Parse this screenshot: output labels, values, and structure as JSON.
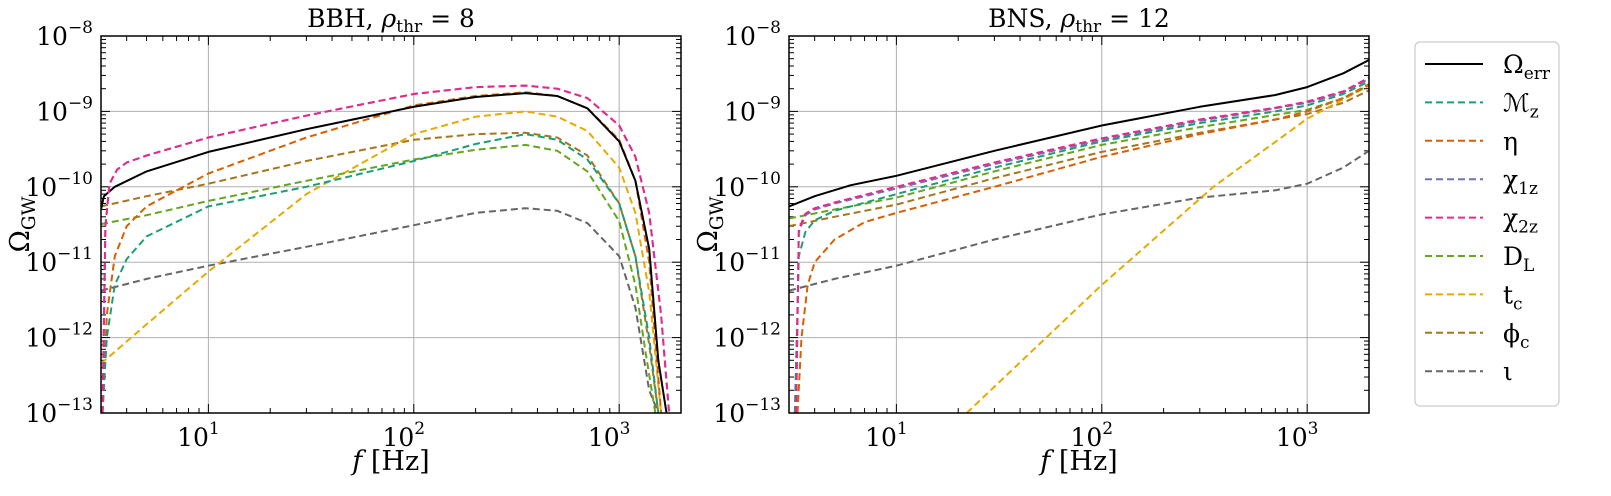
{
  "figure": {
    "ylabel_main": "Ω",
    "ylabel_sub": "GW",
    "xlabel_var": "f",
    "xlabel_unit": "[Hz]"
  },
  "colors": {
    "Omega_err": "#000000",
    "Mz": "#1b9e77",
    "eta": "#d95f02",
    "chi1z": "#7570b3",
    "chi2z": "#e7298a",
    "DL": "#66a61e",
    "tc": "#e6ab02",
    "phic": "#a6761d",
    "iota": "#666666"
  },
  "legend": {
    "placement": "outside-right",
    "entries": [
      {
        "key": "Omega_err",
        "label": "Ω",
        "sub": "err",
        "style": "solid"
      },
      {
        "key": "Mz",
        "label": "ℳ",
        "sub": "z",
        "style": "dashed"
      },
      {
        "key": "eta",
        "label": "η",
        "sub": "",
        "style": "dashed"
      },
      {
        "key": "chi1z",
        "label": "χ",
        "sub": "1z",
        "style": "dashed"
      },
      {
        "key": "chi2z",
        "label": "χ",
        "sub": "2z",
        "style": "dashed"
      },
      {
        "key": "DL",
        "label": "D",
        "sub": "L",
        "style": "dashed"
      },
      {
        "key": "tc",
        "label": "t",
        "sub": "c",
        "style": "dashed"
      },
      {
        "key": "phic",
        "label": "ϕ",
        "sub": "c",
        "style": "dashed"
      },
      {
        "key": "iota",
        "label": "ι",
        "sub": "",
        "style": "dashed"
      }
    ]
  },
  "chart_data": [
    {
      "type": "line",
      "title_prefix": "BBH, ",
      "title_sym": "ρ",
      "title_sub": "thr",
      "title_suffix": " = 8",
      "xscale": "log",
      "yscale": "log",
      "xlim": [
        3,
        2000
      ],
      "ylim": [
        1e-13,
        1e-08
      ],
      "xticks": [
        10,
        100,
        1000
      ],
      "yticks": [
        1e-13,
        1e-12,
        1e-11,
        1e-10,
        1e-09,
        1e-08
      ],
      "grid": true,
      "series": [
        {
          "key": "Omega_err",
          "x": [
            3,
            3.1,
            3.5,
            5,
            10,
            30,
            100,
            200,
            350,
            500,
            700,
            1000,
            1200,
            1400,
            1550,
            1700
          ],
          "y": [
            5e-11,
            7.5e-11,
            1e-10,
            1.6e-10,
            2.9e-10,
            5.8e-10,
            1.15e-09,
            1.55e-09,
            1.75e-09,
            1.6e-09,
            1.1e-09,
            4e-10,
            1.2e-10,
            1.5e-11,
            5e-13,
            1e-13
          ]
        },
        {
          "key": "Mz",
          "x": [
            3.05,
            3.2,
            3.5,
            4,
            5,
            10,
            30,
            100,
            200,
            350,
            500,
            700,
            1000,
            1200,
            1400,
            1550
          ],
          "y": [
            1e-13,
            1e-12,
            5e-12,
            1.1e-11,
            2.2e-11,
            5.5e-11,
            1e-10,
            2.2e-10,
            3.7e-10,
            5e-10,
            4.2e-10,
            2.3e-10,
            6e-11,
            1.2e-11,
            1e-12,
            1e-13
          ]
        },
        {
          "key": "eta",
          "x": [
            3.05,
            3.2,
            3.5,
            4,
            5,
            10,
            30,
            100,
            200,
            350,
            500,
            700,
            1000,
            1200,
            1400,
            1600
          ],
          "y": [
            1e-13,
            2e-12,
            1.2e-11,
            3e-11,
            5.5e-11,
            1.5e-10,
            4.5e-10,
            1.2e-09,
            1.6e-09,
            1.8e-09,
            1.6e-09,
            1.1e-09,
            4.2e-10,
            1.2e-10,
            1e-11,
            1e-13
          ]
        },
        {
          "key": "chi1z",
          "x": [
            3.05,
            3.15,
            3.3,
            3.6,
            4,
            5,
            10,
            30,
            100,
            200,
            350,
            500,
            700,
            1000,
            1200,
            1400,
            1600,
            1750
          ],
          "y": [
            1e-13,
            3e-11,
            1.1e-10,
            1.7e-10,
            2.1e-10,
            2.6e-10,
            4.5e-10,
            8.8e-10,
            1.7e-09,
            2.1e-09,
            2.2e-09,
            2e-09,
            1.5e-09,
            6.5e-10,
            2.5e-10,
            4.5e-11,
            2e-12,
            1e-13
          ]
        },
        {
          "key": "chi2z",
          "x": [
            3.05,
            3.15,
            3.3,
            3.6,
            4,
            5,
            10,
            30,
            100,
            200,
            350,
            500,
            700,
            1000,
            1200,
            1400,
            1600,
            1750
          ],
          "y": [
            1e-13,
            3e-11,
            1.1e-10,
            1.7e-10,
            2.1e-10,
            2.6e-10,
            4.5e-10,
            8.8e-10,
            1.7e-09,
            2.1e-09,
            2.2e-09,
            2e-09,
            1.5e-09,
            6.5e-10,
            2.5e-10,
            4.5e-11,
            2e-12,
            1e-13
          ]
        },
        {
          "key": "DL",
          "x": [
            3,
            5,
            10,
            30,
            100,
            200,
            350,
            500,
            700,
            1000,
            1200,
            1350,
            1500
          ],
          "y": [
            3.2e-11,
            4.2e-11,
            6.5e-11,
            1.2e-10,
            2.3e-10,
            3.1e-10,
            3.6e-10,
            3e-10,
            1.6e-10,
            3.5e-11,
            5e-12,
            6e-13,
            1e-13
          ]
        },
        {
          "key": "tc",
          "x": [
            3,
            5,
            10,
            30,
            100,
            200,
            350,
            500,
            700,
            1000,
            1200,
            1400,
            1600
          ],
          "y": [
            4.5e-13,
            1.5e-12,
            7.5e-12,
            8e-11,
            5e-10,
            8.5e-10,
            1e-09,
            8.5e-10,
            5.5e-10,
            1.8e-10,
            4.5e-11,
            4e-12,
            1e-13
          ]
        },
        {
          "key": "phic",
          "x": [
            3,
            5,
            10,
            30,
            100,
            200,
            350,
            500,
            700,
            1000,
            1200,
            1400,
            1550
          ],
          "y": [
            5.5e-11,
            7.5e-11,
            1.1e-10,
            2.2e-10,
            4.2e-10,
            5e-10,
            5.2e-10,
            4.5e-10,
            2.6e-10,
            6e-11,
            1.2e-11,
            8e-13,
            1e-13
          ]
        },
        {
          "key": "iota",
          "x": [
            3,
            5,
            10,
            30,
            100,
            200,
            350,
            500,
            700,
            1000,
            1200,
            1400,
            1550
          ],
          "y": [
            4.2e-12,
            6e-12,
            9e-12,
            1.6e-11,
            3.1e-11,
            4.5e-11,
            5.2e-11,
            4.8e-11,
            3.3e-11,
            1.2e-11,
            2.5e-12,
            2e-13,
            1e-13
          ]
        }
      ]
    },
    {
      "type": "line",
      "title_prefix": "BNS, ",
      "title_sym": "ρ",
      "title_sub": "thr",
      "title_suffix": " = 12",
      "xscale": "log",
      "yscale": "log",
      "xlim": [
        3,
        2000
      ],
      "ylim": [
        1e-13,
        1e-08
      ],
      "xticks": [
        10,
        100,
        1000
      ],
      "yticks": [
        1e-13,
        1e-12,
        1e-11,
        1e-10,
        1e-09,
        1e-08
      ],
      "grid": true,
      "series": [
        {
          "key": "Omega_err",
          "x": [
            3,
            4,
            6,
            10,
            30,
            100,
            300,
            700,
            1000,
            1500,
            2000
          ],
          "y": [
            5.5e-11,
            7.5e-11,
            1.05e-10,
            1.4e-10,
            3e-10,
            6.5e-10,
            1.15e-09,
            1.65e-09,
            2.1e-09,
            3.2e-09,
            4.8e-09
          ]
        },
        {
          "key": "Mz",
          "x": [
            3.2,
            3.35,
            3.6,
            4,
            5,
            10,
            30,
            100,
            300,
            700,
            1000,
            1500,
            2000
          ],
          "y": [
            1e-13,
            1.2e-11,
            2.5e-11,
            3.6e-11,
            4.8e-11,
            8e-11,
            1.8e-10,
            4e-10,
            7e-10,
            1e-09,
            1.2e-09,
            1.7e-09,
            2.5e-09
          ]
        },
        {
          "key": "eta",
          "x": [
            3.3,
            3.45,
            3.7,
            4,
            5,
            7,
            10,
            30,
            100,
            300,
            700,
            1000,
            1500,
            2000
          ],
          "y": [
            1e-13,
            1e-12,
            5e-12,
            1e-11,
            2e-11,
            3.4e-11,
            4.5e-11,
            1e-10,
            2.5e-10,
            5e-10,
            7.8e-10,
            1e-09,
            1.5e-09,
            2.3e-09
          ]
        },
        {
          "key": "chi1z",
          "x": [
            3.25,
            3.35,
            3.6,
            4,
            5,
            10,
            30,
            100,
            300,
            700,
            1000,
            1500,
            2000
          ],
          "y": [
            1e-13,
            2.5e-11,
            4.2e-11,
            5e-11,
            6e-11,
            9.5e-11,
            2e-10,
            4.2e-10,
            7.5e-10,
            1.1e-09,
            1.3e-09,
            1.8e-09,
            2.7e-09
          ]
        },
        {
          "key": "chi2z",
          "x": [
            3.25,
            3.35,
            3.6,
            4,
            5,
            10,
            30,
            100,
            300,
            700,
            1000,
            1500,
            2000
          ],
          "y": [
            1e-13,
            2.7e-11,
            4.4e-11,
            5.2e-11,
            6.2e-11,
            1e-10,
            2.1e-10,
            4.4e-10,
            7.8e-10,
            1.12e-09,
            1.35e-09,
            1.85e-09,
            2.8e-09
          ]
        },
        {
          "key": "DL",
          "x": [
            3,
            5,
            10,
            30,
            100,
            300,
            700,
            1000,
            1500,
            2000
          ],
          "y": [
            3.8e-11,
            5e-11,
            7.2e-11,
            1.6e-10,
            3.6e-10,
            6.2e-10,
            9e-10,
            1.05e-09,
            1.5e-09,
            2.2e-09
          ]
        },
        {
          "key": "tc",
          "x": [
            22,
            100,
            350,
            1000,
            2000
          ],
          "y": [
            1e-13,
            5e-12,
            1e-10,
            8e-10,
            2.2e-09
          ]
        },
        {
          "key": "phic",
          "x": [
            3,
            5,
            10,
            30,
            100,
            300,
            700,
            1000,
            1500,
            2000
          ],
          "y": [
            3e-11,
            4e-11,
            5.8e-11,
            1.3e-10,
            2.9e-10,
            5.2e-10,
            7.8e-10,
            9.2e-10,
            1.3e-09,
            1.9e-09
          ]
        },
        {
          "key": "iota",
          "x": [
            3,
            5,
            10,
            30,
            100,
            300,
            700,
            1000,
            1500,
            2000
          ],
          "y": [
            4.2e-12,
            6e-12,
            9e-12,
            2e-11,
            4.3e-11,
            7.2e-11,
            9e-11,
            1.1e-10,
            1.8e-10,
            3e-10
          ]
        }
      ]
    }
  ]
}
